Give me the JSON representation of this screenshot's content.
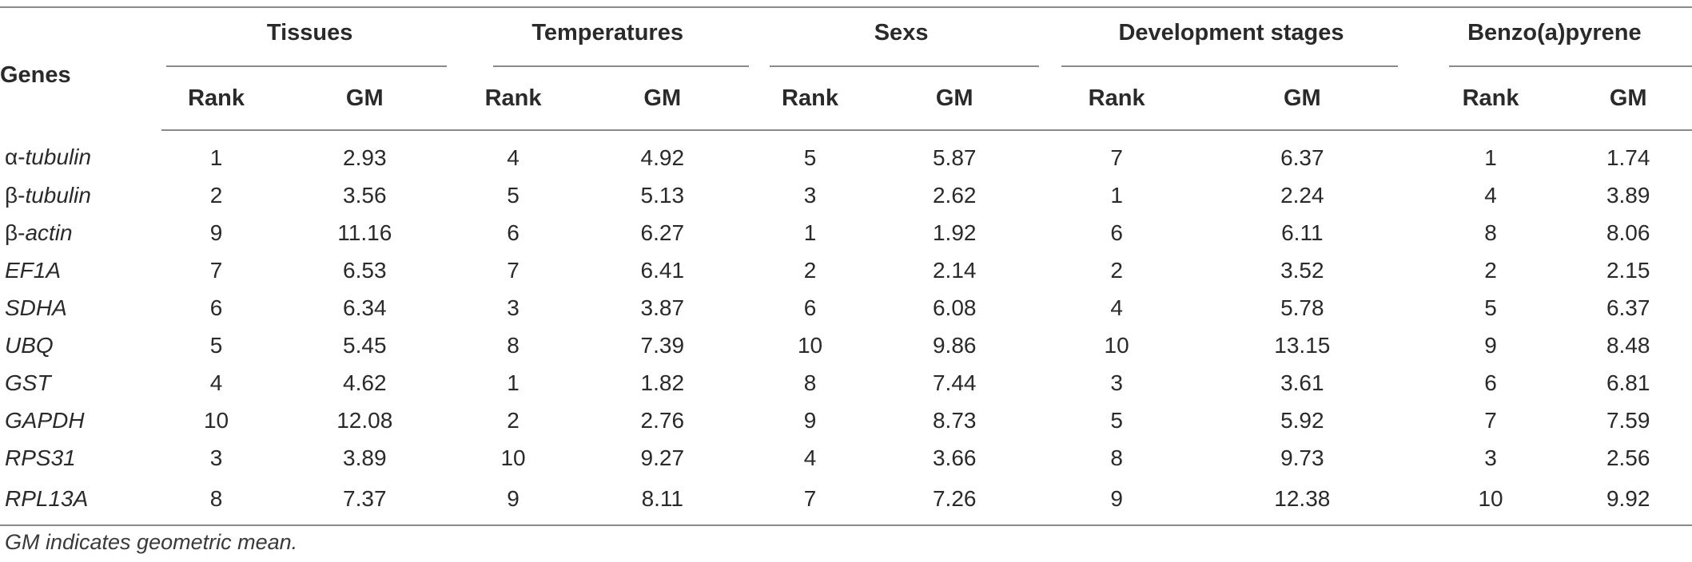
{
  "table": {
    "genes_header": "Genes",
    "groups": [
      {
        "label": "Tissues"
      },
      {
        "label": "Temperatures"
      },
      {
        "label": "Sexs"
      },
      {
        "label": "Development stages"
      },
      {
        "label": "Benzo(a)pyrene"
      }
    ],
    "sub_headers": {
      "rank": "Rank",
      "gm": "GM"
    },
    "rows": [
      {
        "prefix": "α-",
        "gene": "tubulin",
        "values": [
          "1",
          "2.93",
          "4",
          "4.92",
          "5",
          "5.87",
          "7",
          "6.37",
          "1",
          "1.74"
        ]
      },
      {
        "prefix": "β-",
        "gene": "tubulin",
        "values": [
          "2",
          "3.56",
          "5",
          "5.13",
          "3",
          "2.62",
          "1",
          "2.24",
          "4",
          "3.89"
        ]
      },
      {
        "prefix": "β-",
        "gene": "actin",
        "values": [
          "9",
          "11.16",
          "6",
          "6.27",
          "1",
          "1.92",
          "6",
          "6.11",
          "8",
          "8.06"
        ]
      },
      {
        "prefix": "",
        "gene": "EF1A",
        "values": [
          "7",
          "6.53",
          "7",
          "6.41",
          "2",
          "2.14",
          "2",
          "3.52",
          "2",
          "2.15"
        ]
      },
      {
        "prefix": "",
        "gene": "SDHA",
        "values": [
          "6",
          "6.34",
          "3",
          "3.87",
          "6",
          "6.08",
          "4",
          "5.78",
          "5",
          "6.37"
        ]
      },
      {
        "prefix": "",
        "gene": "UBQ",
        "values": [
          "5",
          "5.45",
          "8",
          "7.39",
          "10",
          "9.86",
          "10",
          "13.15",
          "9",
          "8.48"
        ]
      },
      {
        "prefix": "",
        "gene": "GST",
        "values": [
          "4",
          "4.62",
          "1",
          "1.82",
          "8",
          "7.44",
          "3",
          "3.61",
          "6",
          "6.81"
        ]
      },
      {
        "prefix": "",
        "gene": "GAPDH",
        "values": [
          "10",
          "12.08",
          "2",
          "2.76",
          "9",
          "8.73",
          "5",
          "5.92",
          "7",
          "7.59"
        ]
      },
      {
        "prefix": "",
        "gene": "RPS31",
        "values": [
          "3",
          "3.89",
          "10",
          "9.27",
          "4",
          "3.66",
          "8",
          "9.73",
          "3",
          "2.56"
        ]
      },
      {
        "prefix": "",
        "gene": "RPL13A",
        "values": [
          "8",
          "7.37",
          "9",
          "8.11",
          "7",
          "7.26",
          "9",
          "12.38",
          "10",
          "9.92"
        ]
      }
    ]
  },
  "footnote": "GM indicates geometric mean."
}
